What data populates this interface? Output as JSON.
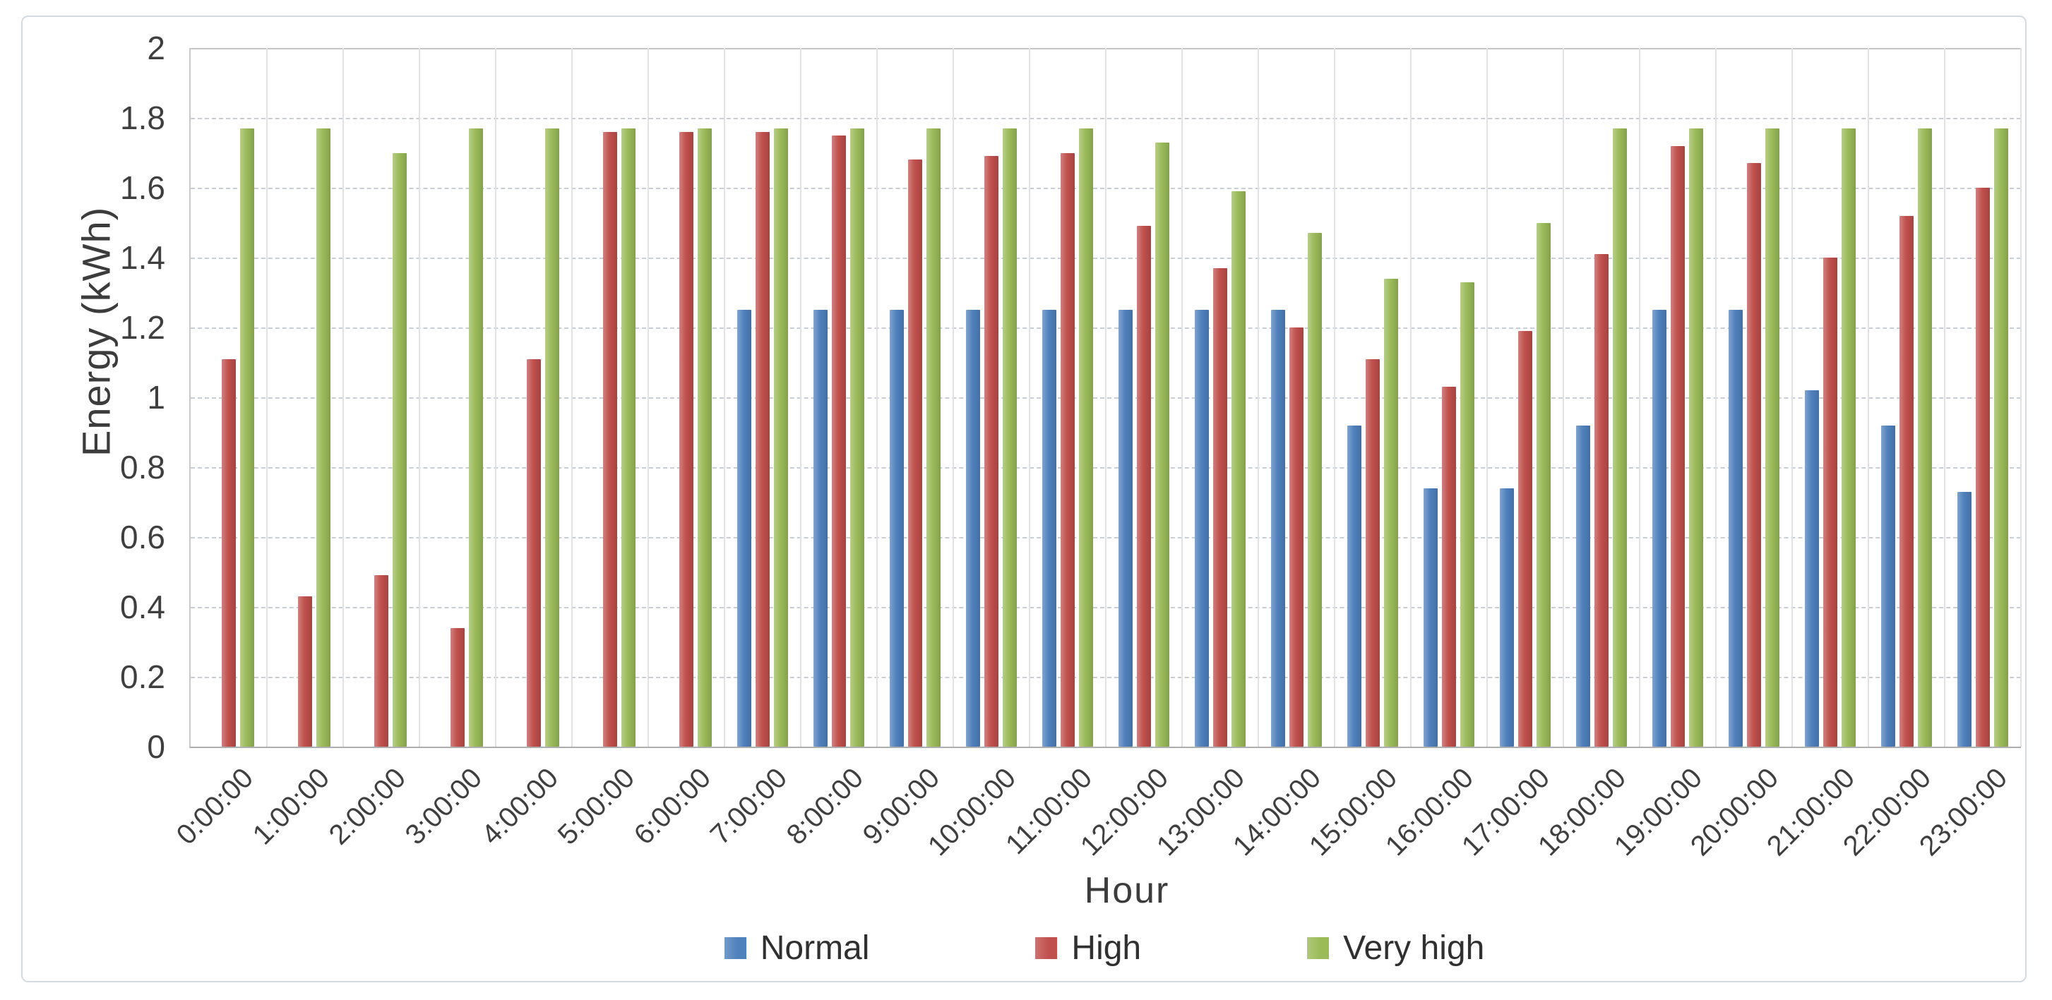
{
  "chart_data": {
    "type": "bar",
    "title": "",
    "xlabel": "Hour",
    "ylabel": "Energy (kWh)",
    "ylim": [
      0,
      2
    ],
    "y_tick_step": 0.2,
    "y_tick_labels": [
      "2",
      "1.8",
      "1.6",
      "1.4",
      "1.2",
      "1",
      "0.8",
      "0.6",
      "0.4",
      "0.2",
      "0"
    ],
    "grid": true,
    "legend_position": "bottom",
    "categories": [
      "0:00:00",
      "1:00:00",
      "2:00:00",
      "3:00:00",
      "4:00:00",
      "5:00:00",
      "6:00:00",
      "7:00:00",
      "8:00:00",
      "9:00:00",
      "10:00:00",
      "11:00:00",
      "12:00:00",
      "13:00:00",
      "14:00:00",
      "15:00:00",
      "16:00:00",
      "17:00:00",
      "18:00:00",
      "19:00:00",
      "20:00:00",
      "21:00:00",
      "22:00:00",
      "23:00:00"
    ],
    "series": [
      {
        "name": "Normal",
        "color": "#4f81bd",
        "values": [
          0,
          0,
          0,
          0,
          0,
          0,
          0,
          1.25,
          1.25,
          1.25,
          1.25,
          1.25,
          1.25,
          1.25,
          1.25,
          0.92,
          0.74,
          0.74,
          0.92,
          1.25,
          1.25,
          1.02,
          0.92,
          0.73
        ]
      },
      {
        "name": "High",
        "color": "#c0504d",
        "values": [
          1.11,
          0.43,
          0.49,
          0.34,
          1.11,
          1.76,
          1.76,
          1.76,
          1.75,
          1.68,
          1.69,
          1.7,
          1.49,
          1.37,
          1.2,
          1.11,
          1.03,
          1.19,
          1.41,
          1.72,
          1.67,
          1.4,
          1.52,
          1.6
        ]
      },
      {
        "name": "Very high",
        "color": "#9bbb59",
        "values": [
          1.77,
          1.77,
          1.7,
          1.77,
          1.77,
          1.77,
          1.77,
          1.77,
          1.77,
          1.77,
          1.77,
          1.77,
          1.73,
          1.59,
          1.47,
          1.34,
          1.33,
          1.5,
          1.77,
          1.77,
          1.77,
          1.77,
          1.77,
          1.77
        ]
      }
    ],
    "colors": {
      "axis_text": "#3f3f3f",
      "gridline": "#c9cdd4",
      "frame_border": "#d5dae2"
    }
  }
}
